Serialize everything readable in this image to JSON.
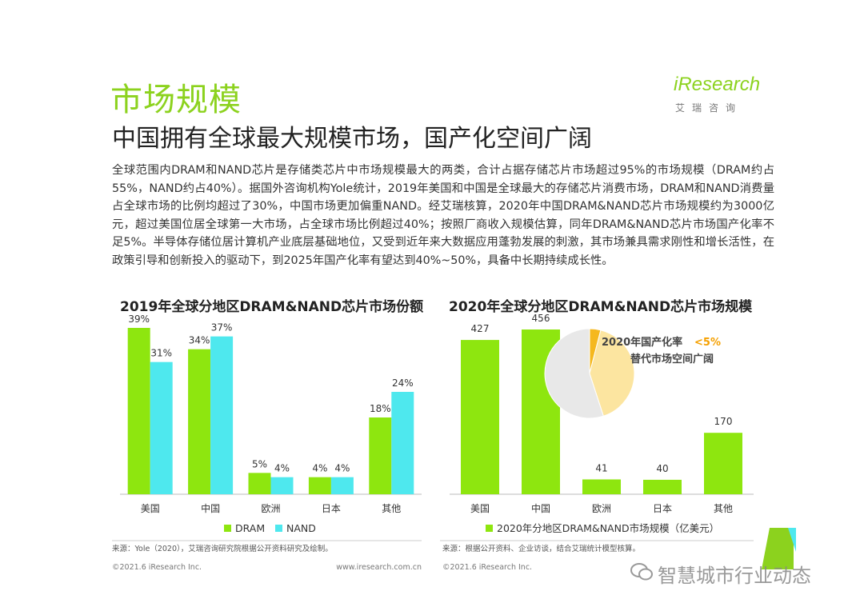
{
  "header": {
    "title": "市场规模",
    "subtitle": "中国拥有全球最大规模市场，国产化空间广阔",
    "logo_word": "iResearch",
    "logo_sub": "艾瑞咨询"
  },
  "body_text": "全球范围内DRAM和NAND芯片是存储类芯片中市场规模最大的两类，合计占据存储芯片市场超过95%的市场规模（DRAM约占55%，NAND约占40%）。据国外咨询机构Yole统计，2019年美国和中国是全球最大的存储芯片消费市场，DRAM和NAND消费量占全球市场的比例均超过了30%，中国市场更加偏重NAND。经艾瑞核算，2020年中国DRAM&NAND芯片市场规模约为3000亿元，超过美国位居全球第一大市场，占全球市场比例超过40%；按照厂商收入规模估算，同年DRAM&NAND芯片市场国产化率不足5%。半导体存储位居计算机产业底层基础地位，又受到近年来大数据应用蓬勃发展的刺激，其市场兼具需求刚性和增长活性，在政策引导和创新投入的驱动下，到2025年国产化率有望达到40%~50%，具备中长期持续成长性。",
  "colors": {
    "accent": "#8cd21e",
    "dram": "#8ee60f",
    "nand": "#4ee8ee",
    "pie_domestic": "#f5b81e",
    "pie_replace": "#fce5a0",
    "pie_rest": "#e8e8e8"
  },
  "chart_data": [
    {
      "type": "bar",
      "title": "2019年全球分地区DRAM&NAND芯片市场份额",
      "categories": [
        "美国",
        "中国",
        "欧洲",
        "日本",
        "其他"
      ],
      "series": [
        {
          "name": "DRAM",
          "values": [
            39,
            34,
            5,
            4,
            18
          ],
          "labels": [
            "39%",
            "34%",
            "5%",
            "4%",
            "18%"
          ]
        },
        {
          "name": "NAND",
          "values": [
            31,
            37,
            4,
            4,
            24
          ],
          "labels": [
            "31%",
            "37%",
            "4%",
            "4%",
            "24%"
          ]
        }
      ],
      "ylim": [
        0,
        42
      ],
      "legend": "bottom",
      "source": "来源：Yole（2020），艾瑞咨询研究院根据公开资料研究及绘制。"
    },
    {
      "type": "bar",
      "title": "2020年全球分地区DRAM&NAND芯片市场规模",
      "categories": [
        "美国",
        "中国",
        "欧洲",
        "日本",
        "其他"
      ],
      "series": [
        {
          "name": "2020年分地区DRAM&NAND市场规模（亿美元）",
          "values": [
            427,
            456,
            41,
            40,
            170
          ]
        }
      ],
      "ylim": [
        0,
        490
      ],
      "legend": "bottom",
      "source": "来源：根据公开资料、企业访谈，结合艾瑞统计模型核算。",
      "inset_pie": {
        "type": "pie",
        "slices": [
          {
            "label": "2020年国产化率",
            "value_label": "<5%",
            "value": 4
          },
          {
            "label": "替代市场空间广阔",
            "value": 41
          },
          {
            "label": "",
            "value": 55
          }
        ]
      }
    }
  ],
  "footer": {
    "copyright": "©2021.6 iResearch Inc.",
    "url": "www.iresearch.com.cn"
  },
  "watermark": "智慧城市行业动态"
}
